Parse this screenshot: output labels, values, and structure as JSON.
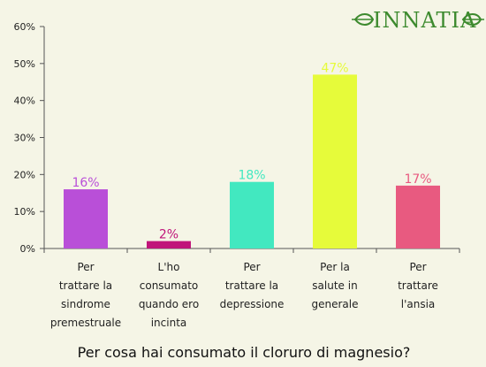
{
  "logo": {
    "text": "INNATIA",
    "color": "#3d8a2e"
  },
  "chart_data": {
    "type": "bar",
    "title": "Per cosa hai consumato il cloruro di magnesio?",
    "categories": [
      [
        "Per",
        "trattare la",
        "sindrome",
        "premestruale"
      ],
      [
        "L'ho",
        "consumato",
        "quando ero",
        "incinta"
      ],
      [
        "Per",
        "trattare la",
        "depressione"
      ],
      [
        "Per la",
        "salute in",
        "generale"
      ],
      [
        "Per",
        "trattare",
        "l'ansia"
      ]
    ],
    "values": [
      16,
      2,
      18,
      47,
      17
    ],
    "value_labels": [
      "16%",
      "2%",
      "18%",
      "47%",
      "17%"
    ],
    "colors": [
      "#b94fd8",
      "#c0157a",
      "#42e8c0",
      "#e6fb3a",
      "#e85a80"
    ],
    "label_colors": [
      "#b94fd8",
      "#c0157a",
      "#42e8c0",
      "#e6fb3a",
      "#e85a80"
    ],
    "yticks": [
      "0%",
      "10%",
      "20%",
      "30%",
      "40%",
      "50%",
      "60%"
    ],
    "ylim": [
      0,
      60
    ],
    "grid": false,
    "legend": "none"
  }
}
